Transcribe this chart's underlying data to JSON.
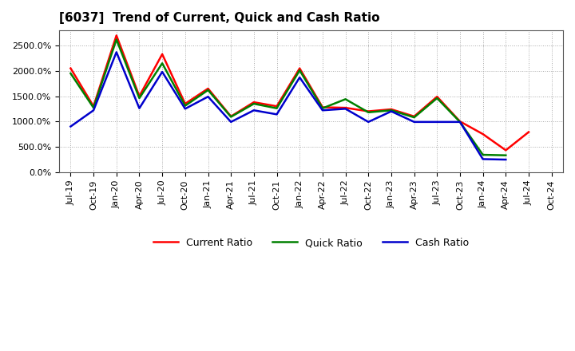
{
  "title": "[6037]  Trend of Current, Quick and Cash Ratio",
  "x_labels": [
    "Jul-19",
    "Oct-19",
    "Jan-20",
    "Apr-20",
    "Jul-20",
    "Oct-20",
    "Jan-21",
    "Apr-21",
    "Jul-21",
    "Oct-21",
    "Jan-22",
    "Apr-22",
    "Jul-22",
    "Oct-22",
    "Jan-23",
    "Apr-23",
    "Jul-23",
    "Oct-23",
    "Jan-24",
    "Apr-24",
    "Jul-24",
    "Oct-24"
  ],
  "current_ratio": [
    2050,
    1300,
    2700,
    1500,
    2330,
    1350,
    1650,
    1100,
    1380,
    1300,
    2050,
    1280,
    1270,
    1200,
    1240,
    1100,
    1490,
    1000,
    750,
    430,
    790,
    null
  ],
  "quick_ratio": [
    1950,
    1270,
    2620,
    1460,
    2150,
    1310,
    1620,
    1090,
    1350,
    1260,
    2010,
    1260,
    1440,
    1180,
    1220,
    1080,
    1460,
    990,
    340,
    330,
    null,
    null
  ],
  "cash_ratio": [
    900,
    1220,
    2370,
    1260,
    1980,
    1250,
    1490,
    990,
    1220,
    1140,
    1870,
    1220,
    1250,
    990,
    1200,
    990,
    990,
    990,
    255,
    245,
    null,
    null
  ],
  "current_color": "#ff0000",
  "quick_color": "#008000",
  "cash_color": "#0000cc",
  "ylim": [
    0,
    2800
  ],
  "yticks": [
    0,
    500,
    1000,
    1500,
    2000,
    2500
  ],
  "background_color": "#ffffff",
  "grid_color": "#aaaaaa"
}
